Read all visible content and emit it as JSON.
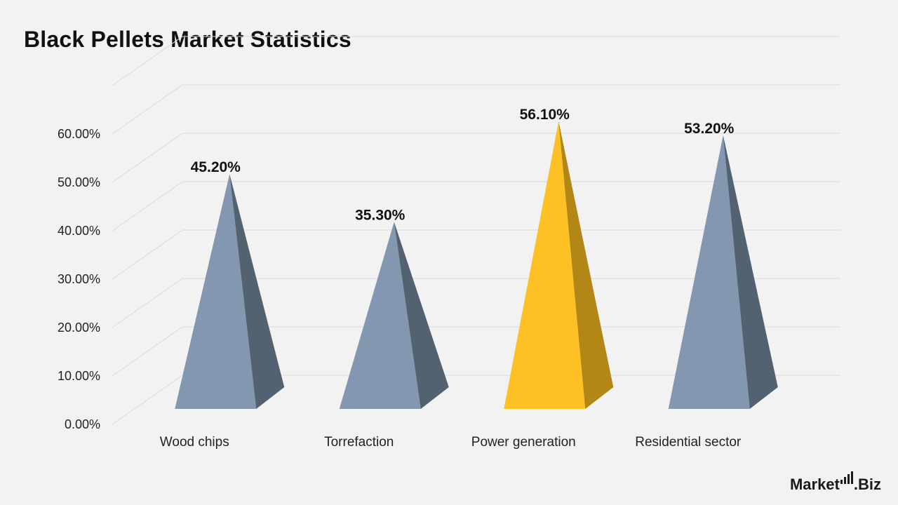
{
  "header": {
    "title": "Black Pellets Market Statistics"
  },
  "brand": {
    "name_part1": "Market",
    "name_part2": ".Biz"
  },
  "colors": {
    "background": "#f2f2f2",
    "bar_front": "#8497b0",
    "bar_side": "#536271",
    "highlight_front": "#fdc125",
    "highlight_side": "#b38716",
    "grid": "#d9d9d9"
  },
  "chart_data": {
    "type": "bar",
    "style": "3d-pyramid",
    "title": "Black Pellets Market Statistics",
    "categories": [
      "Wood chips",
      "Torrefaction",
      "Power generation",
      "Residential sector"
    ],
    "values": [
      45.2,
      35.3,
      56.1,
      53.2
    ],
    "value_labels": [
      "45.20%",
      "35.30%",
      "56.10%",
      "53.20%"
    ],
    "highlight_index": 2,
    "ylim": [
      0,
      60
    ],
    "yticks": [
      0,
      10,
      20,
      30,
      40,
      50,
      60
    ],
    "ytick_labels": [
      "0.00%",
      "10.00%",
      "20.00%",
      "30.00%",
      "40.00%",
      "50.00%",
      "60.00%"
    ],
    "xlabel": "",
    "ylabel": "",
    "grid": true,
    "legend": "none"
  }
}
